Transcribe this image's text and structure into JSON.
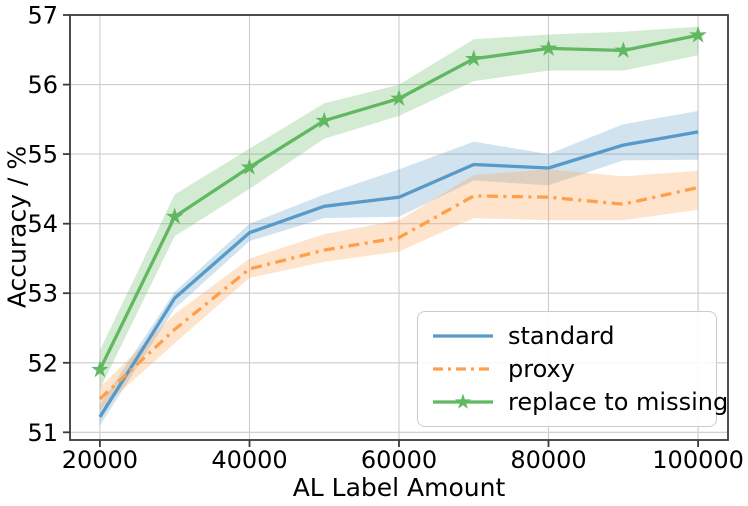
{
  "chart_data": {
    "type": "line",
    "title": "",
    "xlabel": "AL Label Amount",
    "ylabel": "Accuracy / %",
    "xlim": [
      16000,
      104000
    ],
    "ylim": [
      50.89,
      57.0
    ],
    "grid": true,
    "grid_color": "#cccccc",
    "spine_color": "#3a3a3a",
    "xticks": {
      "values": [
        20000,
        40000,
        60000,
        80000,
        100000
      ],
      "labels": [
        "20000",
        "40000",
        "60000",
        "80000",
        "100000"
      ]
    },
    "yticks": {
      "values": [
        51,
        52,
        53,
        54,
        55,
        56,
        57
      ],
      "labels": [
        "51",
        "52",
        "53",
        "54",
        "55",
        "56",
        "57"
      ]
    },
    "x": [
      20000,
      30000,
      40000,
      50000,
      60000,
      70000,
      80000,
      90000,
      100000
    ],
    "series": [
      {
        "name": "standard",
        "color": "#5799c7",
        "style": "solid",
        "marker": "none",
        "values": [
          51.22,
          52.93,
          53.87,
          54.25,
          54.38,
          54.85,
          54.8,
          55.13,
          55.32
        ],
        "band_upper": [
          51.4,
          53.02,
          54.0,
          54.42,
          54.78,
          55.18,
          55.0,
          55.43,
          55.62
        ],
        "band_lower": [
          51.1,
          52.78,
          53.75,
          54.08,
          54.1,
          54.62,
          54.55,
          54.91,
          54.92
        ]
      },
      {
        "name": "proxy",
        "color": "#ff9f4a",
        "style": "dashdot",
        "marker": "none",
        "values": [
          51.48,
          52.48,
          53.35,
          53.62,
          53.8,
          54.4,
          54.38,
          54.28,
          54.52
        ],
        "band_upper": [
          51.65,
          52.7,
          53.5,
          53.85,
          54.05,
          54.7,
          54.78,
          54.68,
          54.76
        ],
        "band_lower": [
          51.32,
          52.28,
          53.22,
          53.45,
          53.6,
          54.08,
          54.05,
          54.05,
          54.2
        ]
      },
      {
        "name": "replace to missing",
        "color": "#61b861",
        "style": "solid",
        "marker": "star",
        "values": [
          51.9,
          54.1,
          54.81,
          55.48,
          55.8,
          56.37,
          56.52,
          56.49,
          56.71
        ],
        "band_upper": [
          52.18,
          54.42,
          55.08,
          55.73,
          56.0,
          56.65,
          56.72,
          56.76,
          56.83
        ],
        "band_lower": [
          51.62,
          53.82,
          54.5,
          55.22,
          55.55,
          56.05,
          56.2,
          56.2,
          56.42
        ]
      }
    ],
    "band_opacity": 0.28,
    "legend": {
      "position": "lower right"
    }
  }
}
